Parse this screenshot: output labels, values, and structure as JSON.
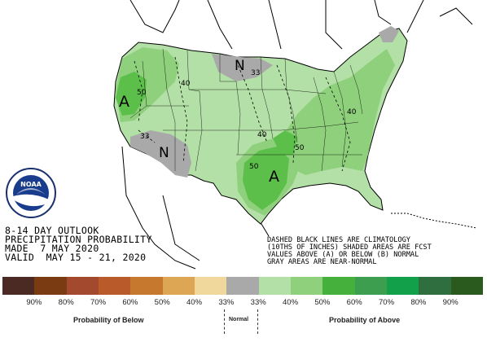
{
  "title": {
    "line1": "8-14 DAY OUTLOOK",
    "line2": "PRECIPITATION PROBABILITY",
    "line3": "MADE  7 MAY 2020",
    "line4": "VALID  MAY 15 - 21, 2020"
  },
  "notes": {
    "line1": "DASHED BLACK LINES ARE CLIMATOLOGY",
    "line2": "(10THS OF INCHES) SHADED AREAS ARE FCST",
    "line3": "VALUES ABOVE (A) OR BELOW (B) NORMAL",
    "line4": "GRAY AREAS ARE NEAR-NORMAL"
  },
  "logo_text": "NOAA",
  "map_labels": {
    "a_northwest": "A",
    "a_texas": "A",
    "n_north": "N",
    "n_southwest": "N",
    "c50_nw": "50",
    "c40_nw": "40",
    "c33_west": "33",
    "c33_north": "33",
    "c40_east": "40",
    "c40_central": "40",
    "c50_south": "50",
    "c50_texas": "50"
  },
  "colors": {
    "near_normal": "#a9a9a9",
    "above_33": "#b3e0a6",
    "above_40": "#8fd07c",
    "above_50": "#5cbf4a",
    "below_33": "#f0d89c"
  },
  "legend": {
    "swatches": [
      "#4a2a22",
      "#7a3a12",
      "#a34a2e",
      "#b95a2a",
      "#c7782f",
      "#dca655",
      "#f0d89c",
      "#a9a9a9",
      "#b3e0a6",
      "#8fd07c",
      "#46b03c",
      "#3d9e4f",
      "#12a14a",
      "#2f6e3f",
      "#2b5a1e"
    ],
    "labels": [
      "90%",
      "80%",
      "70%",
      "60%",
      "50%",
      "40%",
      "33%",
      "33%",
      "40%",
      "50%",
      "60%",
      "70%",
      "80%",
      "90%"
    ],
    "caption_below": "Probability of Below",
    "caption_normal": "Normal",
    "caption_above": "Probability of Above"
  }
}
